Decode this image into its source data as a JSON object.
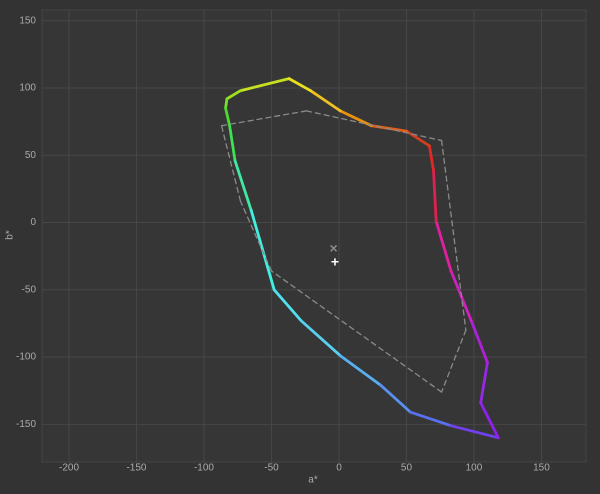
{
  "chart_data": {
    "type": "line",
    "xlabel": "a*",
    "ylabel": "b*",
    "xlim": [
      -220,
      183
    ],
    "ylim": [
      -178,
      158
    ],
    "xticks": [
      -200,
      -150,
      -100,
      -50,
      0,
      50,
      100,
      150
    ],
    "yticks": [
      -150,
      -100,
      -50,
      0,
      50,
      100,
      150
    ],
    "grid": true,
    "series": [
      {
        "style": "solid",
        "closed": true,
        "x": [
          -37,
          -73,
          -83,
          -84,
          -81,
          -77,
          -65,
          -48,
          -28,
          1,
          31,
          53,
          83,
          118,
          105,
          110,
          98,
          83,
          72,
          70,
          67,
          50,
          24,
          1,
          -21
        ],
        "values": [
          107,
          98,
          92,
          85,
          72,
          46,
          9,
          -50,
          -73,
          -99,
          -121,
          -141,
          -151,
          -160,
          -134,
          -104,
          -73,
          -36,
          1,
          39,
          57,
          68,
          72,
          83,
          98
        ],
        "colors": [
          "#c8e020",
          "#a0e020",
          "#78e028",
          "#50d830",
          "#40e050",
          "#40e8a0",
          "#40f0e0",
          "#50e0f0",
          "#58d0f0",
          "#58b0f0",
          "#5890f0",
          "#5870f0",
          "#7040e8",
          "#9020f0",
          "#9828e8",
          "#b020d8",
          "#d020c0",
          "#e020a0",
          "#e02050",
          "#e02828",
          "#d04020",
          "#e06018",
          "#e89010",
          "#f0c020",
          "#e8e020"
        ]
      },
      {
        "style": "dashed",
        "closed": false,
        "color": "#8a8a8a",
        "x": [
          -87,
          -24,
          76,
          94,
          76,
          -50,
          -73,
          -87
        ],
        "values": [
          72,
          83,
          61,
          -80,
          -126,
          -36,
          16,
          72
        ]
      }
    ],
    "markers": [
      {
        "x": -4,
        "y": -20,
        "symbol": "×",
        "color": "#8a8a8a"
      },
      {
        "x": -3,
        "y": -30,
        "symbol": "+",
        "color": "#ffffff"
      }
    ]
  }
}
